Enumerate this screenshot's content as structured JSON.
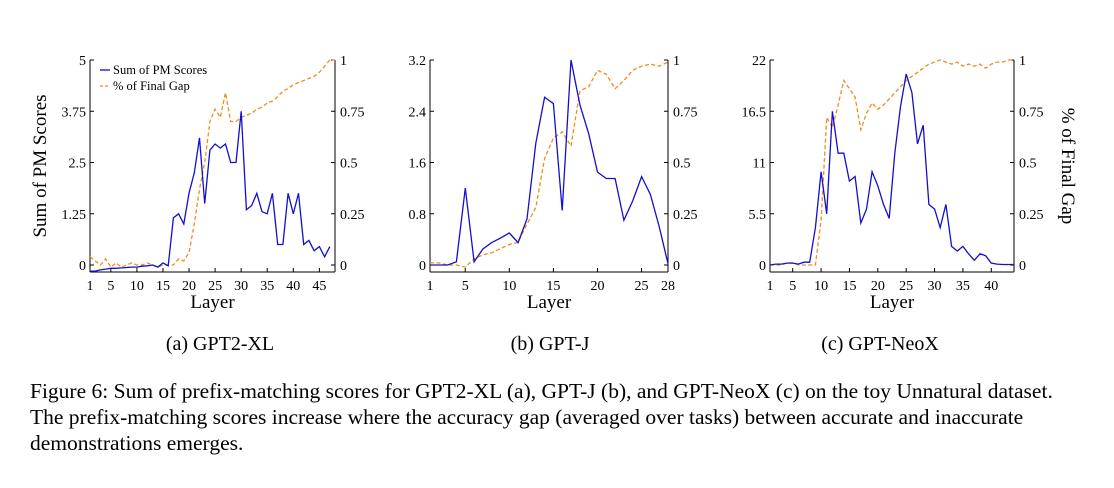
{
  "caption": "Figure 6: Sum of prefix-matching scores for GPT2-XL (a), GPT-J (b), and GPT-NeoX (c) on the toy Unnatural dataset. The prefix-matching scores increase where the accuracy gap (averaged over tasks) between accurate and inaccurate demonstrations emerges.",
  "colors": {
    "pm": "#1010d0",
    "gap": "#f08c1e"
  },
  "chart_data": [
    {
      "type": "line",
      "subcaption": "(a) GPT2-XL",
      "xlabel": "Layer",
      "ylabel": "Sum of PM Scores",
      "y2label": "",
      "x_ticks": [
        1,
        5,
        10,
        15,
        20,
        25,
        30,
        35,
        40,
        45
      ],
      "xlim": [
        1,
        48
      ],
      "y_ticks": [
        0,
        1.25,
        2.5,
        3.75,
        5
      ],
      "y_tick_labels": [
        "0",
        "1.25",
        "2.5",
        "3.75",
        "5"
      ],
      "ylim": [
        0,
        5
      ],
      "y2_ticks": [
        0,
        0.25,
        0.5,
        0.75,
        1
      ],
      "y2_tick_labels": [
        "0",
        "0.25",
        "0.5",
        "0.75",
        "1"
      ],
      "y2lim": [
        0,
        1
      ],
      "legend": {
        "show": true,
        "position": "top-left",
        "entries": [
          "Sum of PM Scores",
          "% of Final Gap"
        ]
      },
      "series": [
        {
          "name": "Sum of PM Scores",
          "axis": "left",
          "style": "solid",
          "x": [
            1,
            2,
            3,
            4,
            5,
            6,
            7,
            8,
            9,
            10,
            11,
            12,
            13,
            14,
            15,
            16,
            17,
            18,
            19,
            20,
            21,
            22,
            23,
            24,
            25,
            26,
            27,
            28,
            29,
            30,
            31,
            32,
            33,
            34,
            35,
            36,
            37,
            38,
            39,
            40,
            41,
            42,
            43,
            44,
            45,
            46,
            47
          ],
          "values": [
            -0.15,
            -0.15,
            -0.12,
            -0.1,
            -0.08,
            -0.08,
            -0.07,
            -0.06,
            -0.05,
            -0.05,
            -0.03,
            -0.02,
            0.0,
            -0.05,
            0.05,
            -0.02,
            1.15,
            1.25,
            1.0,
            1.75,
            2.25,
            3.1,
            1.5,
            2.8,
            2.95,
            2.85,
            2.95,
            2.5,
            2.5,
            3.75,
            1.35,
            1.45,
            1.75,
            1.3,
            1.25,
            1.75,
            0.5,
            0.5,
            1.75,
            1.25,
            1.75,
            0.5,
            0.6,
            0.35,
            0.45,
            0.2,
            0.45
          ]
        },
        {
          "name": "% of Final Gap",
          "axis": "right",
          "style": "dashed",
          "x": [
            1,
            2,
            3,
            4,
            5,
            6,
            7,
            8,
            9,
            10,
            11,
            12,
            13,
            14,
            15,
            16,
            17,
            18,
            19,
            20,
            21,
            22,
            23,
            24,
            25,
            26,
            27,
            28,
            29,
            30,
            31,
            32,
            33,
            34,
            35,
            36,
            37,
            38,
            39,
            40,
            41,
            42,
            43,
            44,
            45,
            46,
            47,
            48
          ],
          "values": [
            0.04,
            0.02,
            0.0,
            0.03,
            -0.01,
            0.01,
            -0.01,
            0.0,
            0.01,
            0.0,
            0.0,
            0.01,
            0.0,
            -0.01,
            0.0,
            0.0,
            0.0,
            0.03,
            0.02,
            0.06,
            0.2,
            0.37,
            0.5,
            0.7,
            0.76,
            0.72,
            0.84,
            0.7,
            0.7,
            0.72,
            0.73,
            0.74,
            0.76,
            0.77,
            0.79,
            0.8,
            0.82,
            0.85,
            0.86,
            0.88,
            0.89,
            0.9,
            0.91,
            0.92,
            0.94,
            0.97,
            1.0,
            1.0
          ]
        }
      ]
    },
    {
      "type": "line",
      "subcaption": "(b) GPT-J",
      "xlabel": "Layer",
      "ylabel": "",
      "y2label": "",
      "x_ticks": [
        1,
        5,
        10,
        15,
        20,
        25,
        28
      ],
      "xlim": [
        1,
        28
      ],
      "y_ticks": [
        0,
        0.8,
        1.6,
        2.4,
        3.2
      ],
      "y_tick_labels": [
        "0",
        "0.8",
        "1.6",
        "2.4",
        "3.2"
      ],
      "ylim": [
        0,
        3.2
      ],
      "y2_ticks": [
        0,
        0.25,
        0.5,
        0.75,
        1
      ],
      "y2_tick_labels": [
        "0",
        "0.25",
        "0.5",
        "0.75",
        "1"
      ],
      "y2lim": [
        0,
        1
      ],
      "legend": {
        "show": false
      },
      "series": [
        {
          "name": "Sum of PM Scores",
          "axis": "left",
          "style": "solid",
          "x": [
            1,
            2,
            3,
            4,
            5,
            6,
            7,
            8,
            9,
            10,
            11,
            12,
            13,
            14,
            15,
            16,
            17,
            18,
            19,
            20,
            21,
            22,
            23,
            24,
            25,
            26,
            27,
            28
          ],
          "values": [
            0.0,
            0.0,
            0.0,
            0.05,
            1.2,
            0.05,
            0.25,
            0.35,
            0.42,
            0.5,
            0.35,
            0.72,
            1.9,
            2.62,
            2.52,
            0.85,
            3.2,
            2.5,
            2.05,
            1.45,
            1.35,
            1.35,
            0.7,
            1.0,
            1.38,
            1.1,
            0.6,
            0.02
          ]
        },
        {
          "name": "% of Final Gap",
          "axis": "right",
          "style": "dashed",
          "x": [
            1,
            2,
            3,
            4,
            5,
            6,
            7,
            8,
            9,
            10,
            11,
            12,
            13,
            14,
            15,
            16,
            17,
            18,
            19,
            20,
            21,
            22,
            23,
            24,
            25,
            26,
            27,
            28
          ],
          "values": [
            0.01,
            0.01,
            0.0,
            0.0,
            -0.01,
            0.03,
            0.05,
            0.06,
            0.08,
            0.1,
            0.11,
            0.2,
            0.28,
            0.52,
            0.62,
            0.65,
            0.58,
            0.85,
            0.87,
            0.95,
            0.93,
            0.86,
            0.9,
            0.95,
            0.97,
            0.98,
            0.97,
            0.99
          ]
        }
      ]
    },
    {
      "type": "line",
      "subcaption": "(c) GPT-NeoX",
      "xlabel": "Layer",
      "ylabel": "",
      "y2label": "% of Final Gap",
      "x_ticks": [
        1,
        5,
        10,
        15,
        20,
        25,
        30,
        35,
        40
      ],
      "xlim": [
        1,
        44
      ],
      "y_ticks": [
        0,
        5.5,
        11,
        16.5,
        22
      ],
      "y_tick_labels": [
        "0",
        "5.5",
        "11",
        "16.5",
        "22"
      ],
      "ylim": [
        0,
        22
      ],
      "y2_ticks": [
        0,
        0.25,
        0.5,
        0.75,
        1
      ],
      "y2_tick_labels": [
        "0",
        "0.25",
        "0.5",
        "0.75",
        "1"
      ],
      "y2lim": [
        0,
        1
      ],
      "legend": {
        "show": false
      },
      "series": [
        {
          "name": "Sum of PM Scores",
          "axis": "left",
          "style": "solid",
          "x": [
            1,
            2,
            3,
            4,
            5,
            6,
            7,
            8,
            9,
            10,
            11,
            12,
            13,
            14,
            15,
            16,
            17,
            18,
            19,
            20,
            21,
            22,
            23,
            24,
            25,
            26,
            27,
            28,
            29,
            30,
            31,
            32,
            33,
            34,
            35,
            36,
            37,
            38,
            39,
            40,
            41,
            42,
            43,
            44
          ],
          "values": [
            0.0,
            0.1,
            0.1,
            0.2,
            0.2,
            0.1,
            0.3,
            0.3,
            4.0,
            10.0,
            5.5,
            16.5,
            12.0,
            12.0,
            9.0,
            9.5,
            4.5,
            6.0,
            10.0,
            8.5,
            6.5,
            5.0,
            12.0,
            17.0,
            20.5,
            18.5,
            13.0,
            15.0,
            6.5,
            6.0,
            4.0,
            6.5,
            2.0,
            1.5,
            2.0,
            1.2,
            0.5,
            1.2,
            1.0,
            0.2,
            0.1,
            0.05,
            0.05,
            0.05
          ]
        },
        {
          "name": "% of Final Gap",
          "axis": "right",
          "style": "dashed",
          "x": [
            1,
            2,
            3,
            4,
            5,
            6,
            7,
            8,
            9,
            10,
            11,
            12,
            13,
            14,
            15,
            16,
            17,
            18,
            19,
            20,
            21,
            22,
            23,
            24,
            25,
            26,
            27,
            28,
            29,
            30,
            31,
            32,
            33,
            34,
            35,
            36,
            37,
            38,
            39,
            40,
            41,
            42,
            43,
            44
          ],
          "values": [
            0.0,
            0.0,
            0.0,
            0.01,
            0.01,
            0.0,
            0.0,
            0.0,
            0.0,
            0.22,
            0.72,
            0.67,
            0.78,
            0.9,
            0.86,
            0.82,
            0.66,
            0.74,
            0.79,
            0.76,
            0.78,
            0.81,
            0.84,
            0.87,
            0.9,
            0.92,
            0.94,
            0.96,
            0.98,
            0.99,
            1.0,
            0.99,
            0.98,
            0.99,
            0.97,
            0.98,
            0.97,
            0.98,
            0.96,
            0.98,
            0.99,
            0.99,
            1.0,
            1.0
          ]
        }
      ]
    }
  ]
}
